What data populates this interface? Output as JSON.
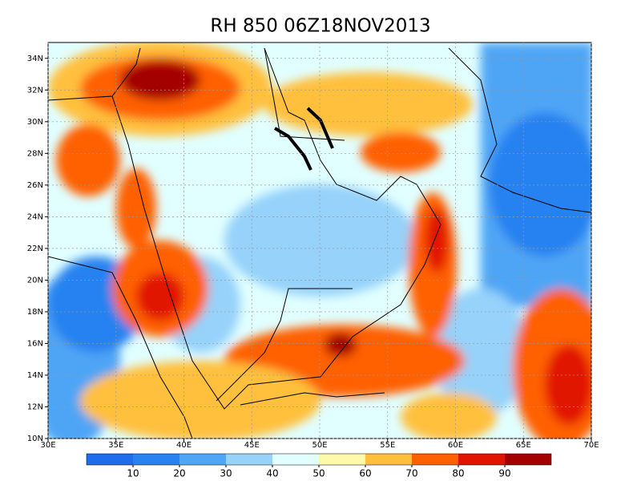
{
  "map": {
    "title": "RH 850 06Z18NOV2013",
    "xlim": [
      30,
      70
    ],
    "ylim": [
      10,
      35
    ],
    "xticks": [
      {
        "value": 30,
        "label": "30E"
      },
      {
        "value": 35,
        "label": "35E"
      },
      {
        "value": 40,
        "label": "40E"
      },
      {
        "value": 45,
        "label": "45E"
      },
      {
        "value": 50,
        "label": "50E"
      },
      {
        "value": 55,
        "label": "55E"
      },
      {
        "value": 60,
        "label": "60E"
      },
      {
        "value": 65,
        "label": "65E"
      },
      {
        "value": 70,
        "label": "70E"
      }
    ],
    "yticks": [
      {
        "value": 10,
        "label": "10N"
      },
      {
        "value": 12,
        "label": "12N"
      },
      {
        "value": 14,
        "label": "14N"
      },
      {
        "value": 16,
        "label": "16N"
      },
      {
        "value": 18,
        "label": "18N"
      },
      {
        "value": 20,
        "label": "20N"
      },
      {
        "value": 22,
        "label": "22N"
      },
      {
        "value": 24,
        "label": "24N"
      },
      {
        "value": 26,
        "label": "26N"
      },
      {
        "value": 28,
        "label": "28N"
      },
      {
        "value": 30,
        "label": "30N"
      },
      {
        "value": 32,
        "label": "32N"
      },
      {
        "value": 34,
        "label": "34N"
      }
    ],
    "grid": true,
    "colorbar": {
      "levels": [
        10,
        20,
        30,
        40,
        50,
        60,
        70,
        80,
        90
      ],
      "colors": [
        "#1e6eeb",
        "#2882f0",
        "#50a5f5",
        "#96d2fa",
        "#e1ffff",
        "#fffaaa",
        "#ffc03c",
        "#ff6000",
        "#e11400",
        "#a50000"
      ]
    }
  }
}
